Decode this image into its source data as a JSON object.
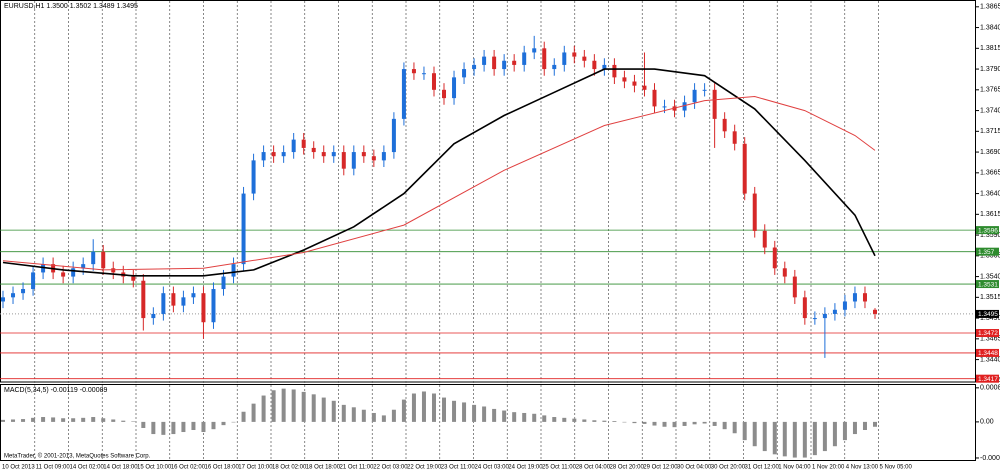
{
  "chart_data": [
    {
      "type": "candlestick",
      "title": "EURUSD,H1  1.3500 1.3502 1.3489 1.3495",
      "up_color": "#1e6fd9",
      "down_color": "#d62828",
      "open": [
        1.351,
        1.3515,
        1.352,
        1.3525,
        1.3545,
        1.3555,
        1.3545,
        1.354,
        1.355,
        1.3555,
        1.357,
        1.355,
        1.3545,
        1.354,
        1.3535,
        1.349,
        1.3495,
        1.352,
        1.3505,
        1.3515,
        1.352,
        1.3485,
        1.3525,
        1.354,
        1.3555,
        1.364,
        1.368,
        1.369,
        1.3685,
        1.369,
        1.3705,
        1.3695,
        1.369,
        1.3685,
        1.369,
        1.367,
        1.369,
        1.3685,
        1.368,
        1.369,
        1.373,
        1.379,
        1.3785,
        1.3785,
        1.3765,
        1.3755,
        1.378,
        1.379,
        1.3795,
        1.3805,
        1.379,
        1.38,
        1.3795,
        1.381,
        1.3815,
        1.379,
        1.3795,
        1.381,
        1.3805,
        1.38,
        1.379,
        1.3795,
        1.378,
        1.3775,
        1.377,
        1.3765,
        1.3745,
        1.3745,
        1.374,
        1.375,
        1.3765,
        1.3765,
        1.373,
        1.3715,
        1.37,
        1.364,
        1.3595,
        1.3575,
        1.355,
        1.354,
        1.3515,
        1.349,
        1.349,
        1.3495,
        1.35,
        1.351,
        1.352,
        1.35
      ],
      "high": [
        1.3523,
        1.3528,
        1.3533,
        1.3553,
        1.3563,
        1.3563,
        1.3553,
        1.3558,
        1.3563,
        1.3585,
        1.3578,
        1.3558,
        1.3553,
        1.3548,
        1.3543,
        1.3503,
        1.3528,
        1.3528,
        1.3523,
        1.3528,
        1.3528,
        1.3533,
        1.3548,
        1.3563,
        1.3648,
        1.3688,
        1.3698,
        1.3698,
        1.3698,
        1.3713,
        1.3713,
        1.3703,
        1.3698,
        1.3698,
        1.3698,
        1.3698,
        1.3698,
        1.3693,
        1.3698,
        1.3738,
        1.3798,
        1.3798,
        1.3793,
        1.3793,
        1.3773,
        1.3788,
        1.3798,
        1.3803,
        1.3813,
        1.3813,
        1.3808,
        1.3808,
        1.3818,
        1.383,
        1.3823,
        1.3803,
        1.3818,
        1.3818,
        1.3813,
        1.3808,
        1.3803,
        1.3803,
        1.3788,
        1.3783,
        1.381,
        1.3773,
        1.3753,
        1.3753,
        1.3758,
        1.3773,
        1.3773,
        1.3773,
        1.3738,
        1.3723,
        1.3708,
        1.3648,
        1.3603,
        1.3583,
        1.3558,
        1.3548,
        1.3523,
        1.3498,
        1.3503,
        1.3508,
        1.3518,
        1.3528,
        1.3528,
        1.3502
      ],
      "low": [
        1.3502,
        1.3507,
        1.3512,
        1.3517,
        1.3537,
        1.3537,
        1.3532,
        1.3532,
        1.3542,
        1.3547,
        1.3542,
        1.3537,
        1.3532,
        1.3527,
        1.3475,
        1.3482,
        1.3487,
        1.3497,
        1.3497,
        1.3507,
        1.3465,
        1.3477,
        1.3517,
        1.3532,
        1.3547,
        1.3632,
        1.3672,
        1.3677,
        1.3677,
        1.3682,
        1.3687,
        1.3682,
        1.3677,
        1.3677,
        1.3662,
        1.3662,
        1.3677,
        1.3672,
        1.3672,
        1.3682,
        1.3722,
        1.3777,
        1.3777,
        1.3757,
        1.3747,
        1.3747,
        1.3772,
        1.3782,
        1.3787,
        1.3782,
        1.3782,
        1.3787,
        1.3787,
        1.3802,
        1.3782,
        1.3782,
        1.3787,
        1.3797,
        1.3792,
        1.3782,
        1.3782,
        1.3772,
        1.3767,
        1.3762,
        1.3757,
        1.3737,
        1.3737,
        1.3732,
        1.3732,
        1.3742,
        1.3757,
        1.3695,
        1.3707,
        1.3692,
        1.3632,
        1.3587,
        1.3567,
        1.3542,
        1.3532,
        1.3507,
        1.3482,
        1.3482,
        1.3442,
        1.3487,
        1.3492,
        1.3502,
        1.3502,
        1.3489
      ],
      "close": [
        1.3515,
        1.352,
        1.3525,
        1.3545,
        1.3555,
        1.3545,
        1.354,
        1.355,
        1.3555,
        1.357,
        1.355,
        1.3545,
        1.354,
        1.3535,
        1.349,
        1.3495,
        1.352,
        1.3505,
        1.3515,
        1.352,
        1.3485,
        1.3525,
        1.354,
        1.3555,
        1.364,
        1.368,
        1.369,
        1.3685,
        1.369,
        1.3705,
        1.3695,
        1.369,
        1.3685,
        1.369,
        1.367,
        1.369,
        1.3685,
        1.368,
        1.369,
        1.373,
        1.379,
        1.3785,
        1.3785,
        1.3765,
        1.3755,
        1.378,
        1.379,
        1.3795,
        1.3805,
        1.379,
        1.38,
        1.3795,
        1.381,
        1.3815,
        1.379,
        1.3795,
        1.381,
        1.3805,
        1.38,
        1.379,
        1.3795,
        1.378,
        1.3775,
        1.377,
        1.3765,
        1.3745,
        1.3745,
        1.374,
        1.375,
        1.3765,
        1.3765,
        1.373,
        1.3715,
        1.37,
        1.364,
        1.3595,
        1.3575,
        1.355,
        1.354,
        1.3515,
        1.349,
        1.349,
        1.3495,
        1.35,
        1.351,
        1.352,
        1.351,
        1.3495
      ],
      "lines": [
        {
          "color": "#000000",
          "x": [
            0,
            6,
            13,
            20,
            25,
            30,
            35,
            40,
            45,
            50,
            55,
            60,
            65,
            70,
            75,
            80,
            85,
            87
          ],
          "values": [
            1.3557,
            1.3548,
            1.3541,
            1.3541,
            1.3548,
            1.3572,
            1.36,
            1.364,
            1.37,
            1.3734,
            1.3762,
            1.379,
            1.379,
            1.3782,
            1.3742,
            1.368,
            1.3614,
            1.3565
          ]
        },
        {
          "color": "#e04040",
          "x": [
            0,
            10,
            20,
            30,
            40,
            50,
            60,
            70,
            75,
            80,
            85,
            87
          ],
          "values": [
            1.3559,
            1.3548,
            1.355,
            1.3569,
            1.3602,
            1.3668,
            1.3722,
            1.3752,
            1.3757,
            1.374,
            1.371,
            1.3692
          ]
        }
      ],
      "levels": [
        {
          "value": 1.3596,
          "color": "#2e8b2e"
        },
        {
          "value": 1.357,
          "color": "#2e8b2e"
        },
        {
          "value": 1.3531,
          "color": "#2e8b2e"
        },
        {
          "value": 1.3472,
          "color": "#e02020"
        },
        {
          "value": 1.3448,
          "color": "#e02020"
        },
        {
          "value": 1.3417,
          "color": "#e02020"
        }
      ],
      "last": 1.3495,
      "ylim": [
        1.3413,
        1.3872
      ],
      "yticks": [
        1.3865,
        {
          "value": 1.384,
          "label": "1.3840"
        },
        1.3815,
        {
          "value": 1.379,
          "label": "1.3790"
        },
        1.3765,
        {
          "value": 1.374,
          "label": "1.3740"
        },
        1.3715,
        {
          "value": 1.369,
          "label": "1.3690"
        },
        1.3665,
        {
          "value": 1.364,
          "label": "1.3640"
        },
        1.3615,
        {
          "value": 1.359,
          "label": "1.3590"
        },
        1.3565,
        {
          "value": 1.354,
          "label": "1.3540"
        },
        1.3515,
        {
          "value": 1.349,
          "label": "1.3490"
        },
        1.3465,
        {
          "value": 1.344,
          "label": "1.3440"
        },
        1.3415
      ],
      "x_labels": [
        "10 Oct 2013",
        "11 Oct 09:00",
        "14 Oct 02:00",
        "14 Oct 18:00",
        "15 Oct 10:00",
        "16 Oct 02:00",
        "16 Oct 18:00",
        "17 Oct 10:00",
        "18 Oct 02:00",
        "18 Oct 18:00",
        "21 Oct 11:00",
        "22 Oct 03:00",
        "22 Oct 19:00",
        "23 Oct 11:00",
        "24 Oct 03:00",
        "24 Oct 19:00",
        "25 Oct 11:00",
        "28 Oct 04:00",
        "28 Oct 20:00",
        "29 Oct 12:00",
        "30 Oct 04:00",
        "30 Oct 20:00",
        "31 Oct 12:00",
        "1 Nov 04:00",
        "1 Nov 20:00",
        "4 Nov 13:00",
        "5 Nov 05:00"
      ],
      "grid": true
    },
    {
      "type": "bar",
      "title": "MACD(5,34,5) -0.00119 -0.00089",
      "color": "#8c8c8c",
      "values": [
        5e-05,
        6e-05,
        7e-05,
        0.0001,
        0.00012,
        0.00011,
        9e-05,
        9e-05,
        0.0001,
        0.00012,
        9e-05,
        6e-05,
        3e-05,
        1e-05,
        -0.00015,
        -0.0003,
        -0.00032,
        -0.0003,
        -0.00025,
        -0.0002,
        -0.00025,
        -0.00018,
        -8e-05,
        0,
        0.00025,
        0.00045,
        0.00065,
        0.00078,
        0.00082,
        0.0008,
        0.00074,
        0.00068,
        0.0006,
        0.00052,
        0.00042,
        0.00036,
        0.0003,
        0.00022,
        0.00016,
        0.0003,
        0.00055,
        0.0007,
        0.00075,
        0.0007,
        0.0006,
        0.00052,
        0.00048,
        0.00042,
        0.00038,
        0.00032,
        0.00028,
        0.00024,
        0.00022,
        0.0002,
        0.00016,
        0.00012,
        0.0001,
        8e-05,
        6e-05,
        4e-05,
        3e-05,
        2e-05,
        0,
        -3e-05,
        -5e-05,
        -9e-05,
        -0.00012,
        -0.00013,
        -0.0001,
        -6e-05,
        -4e-05,
        -0.0001,
        -0.00018,
        -0.00028,
        -0.00045,
        -0.0006,
        -0.00072,
        -0.0008,
        -0.00085,
        -0.00088,
        -0.00088,
        -0.00082,
        -0.00072,
        -0.0006,
        -0.00045,
        -0.0003,
        -0.0002,
        -0.00012
      ],
      "ylim": [
        -0.00094,
        0.00091
      ],
      "yticks": [
        0.00084,
        {
          "value": 0,
          "label": "0.00"
        },
        -0.00089
      ],
      "footnote": "MetaTrader, © 2001-2013, MetaQuotes Software Corp."
    }
  ]
}
